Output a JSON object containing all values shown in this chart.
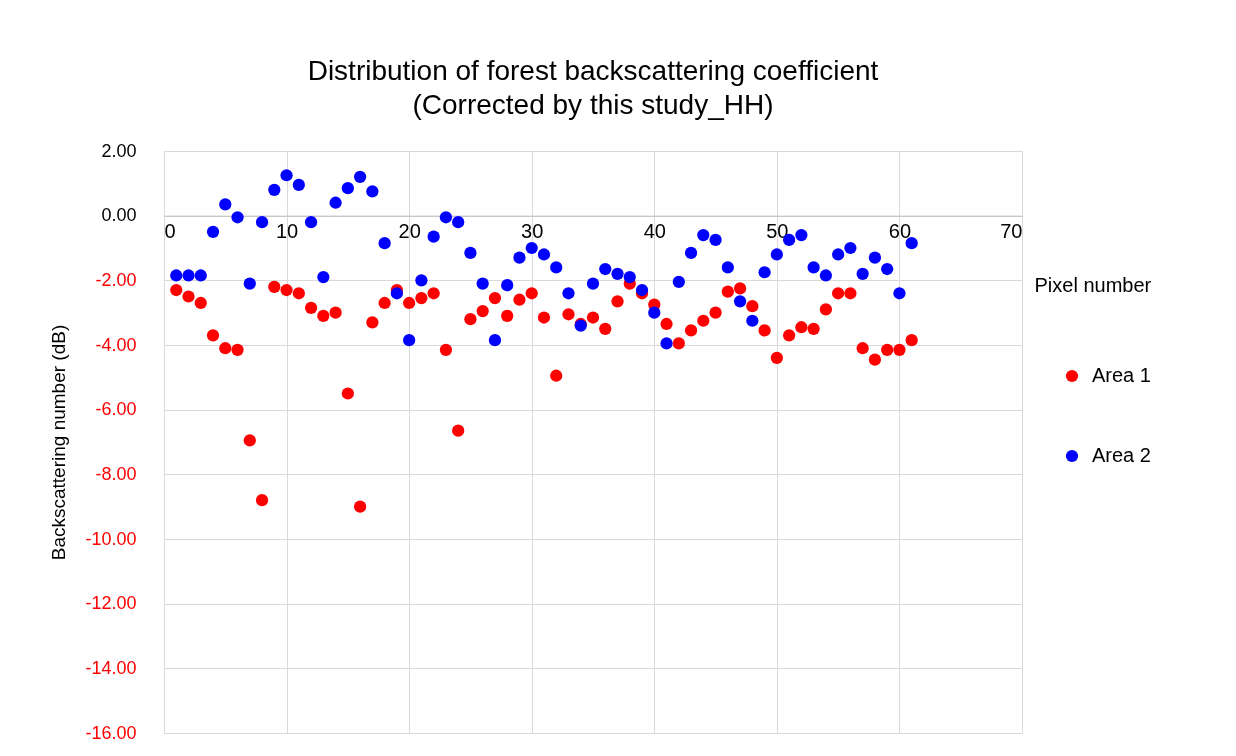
{
  "chart_data": {
    "type": "scatter",
    "title": "Distribution of forest backscattering coefficient",
    "subtitle": "(Corrected by this study_HH)",
    "xlabel": "Pixel number",
    "ylabel": "Backscattering number (dB)",
    "x": [
      1,
      2,
      3,
      4,
      5,
      6,
      7,
      8,
      9,
      10,
      11,
      12,
      13,
      14,
      15,
      16,
      17,
      18,
      19,
      20,
      21,
      22,
      23,
      24,
      25,
      26,
      27,
      28,
      29,
      30,
      31,
      32,
      33,
      34,
      35,
      36,
      37,
      38,
      39,
      40,
      41,
      42,
      43,
      44,
      45,
      46,
      47,
      48,
      49,
      50,
      51,
      52,
      53,
      54,
      55,
      56,
      57,
      58,
      59,
      60,
      61
    ],
    "series": [
      {
        "name": "Area 1",
        "color": "#ff0000",
        "values": [
          -2.3,
          -2.5,
          -2.7,
          -3.7,
          -4.1,
          -4.15,
          -6.95,
          -8.8,
          -2.2,
          -2.3,
          -2.4,
          -2.85,
          -3.1,
          -3.0,
          -5.5,
          -9.0,
          -3.3,
          -2.7,
          -2.3,
          -2.7,
          -2.55,
          -2.4,
          -4.15,
          -6.65,
          -3.2,
          -2.95,
          -2.55,
          -3.1,
          -2.6,
          -2.4,
          -3.15,
          -4.95,
          -3.05,
          -3.35,
          -3.15,
          -3.5,
          -2.65,
          -2.1,
          -2.4,
          -2.75,
          -3.35,
          -3.95,
          -3.55,
          -3.25,
          -3.0,
          -2.35,
          -2.25,
          -2.8,
          -3.55,
          -4.4,
          -3.7,
          -3.45,
          -3.5,
          -2.9,
          -2.4,
          -2.4,
          -4.1,
          -4.45,
          -4.15,
          -4.15,
          -3.85
        ]
      },
      {
        "name": "Area 2",
        "color": "#0000ff",
        "values": [
          -1.85,
          -1.85,
          -1.85,
          -0.5,
          0.35,
          -0.05,
          -2.1,
          -0.2,
          0.8,
          1.25,
          0.95,
          -0.2,
          -1.9,
          0.4,
          0.85,
          1.2,
          0.75,
          -0.85,
          -2.4,
          -3.85,
          -2.0,
          -0.65,
          -0.05,
          -0.2,
          -1.15,
          -2.1,
          -3.85,
          -2.15,
          -1.3,
          -1.0,
          -1.2,
          -1.6,
          -2.4,
          -3.4,
          -2.1,
          -1.65,
          -1.8,
          -1.9,
          -2.3,
          -3.0,
          -3.95,
          -2.05,
          -1.15,
          -0.6,
          -0.75,
          -1.6,
          -2.65,
          -3.25,
          -1.75,
          -1.2,
          -0.75,
          -0.6,
          -1.6,
          -1.85,
          -1.2,
          -1.0,
          -1.8,
          -1.3,
          -1.65,
          -2.4,
          -0.85
        ]
      }
    ],
    "xlim": [
      0,
      70
    ],
    "xticks": [
      0,
      10,
      20,
      30,
      40,
      50,
      60,
      70
    ],
    "ylim": [
      -16,
      2
    ],
    "yticks": [
      {
        "value": 2,
        "label": "2.00"
      },
      {
        "value": 0,
        "label": "0.00"
      },
      {
        "value": -2,
        "label": "-2.00"
      },
      {
        "value": -4,
        "label": "-4.00"
      },
      {
        "value": -6,
        "label": "-6.00"
      },
      {
        "value": -8,
        "label": "-8.00"
      },
      {
        "value": -10,
        "label": "-10.00"
      },
      {
        "value": -12,
        "label": "-12.00"
      },
      {
        "value": -14,
        "label": "-14.00"
      },
      {
        "value": -16,
        "label": "-16.00"
      }
    ],
    "grid": true,
    "legend": "right",
    "marker": "circle"
  }
}
